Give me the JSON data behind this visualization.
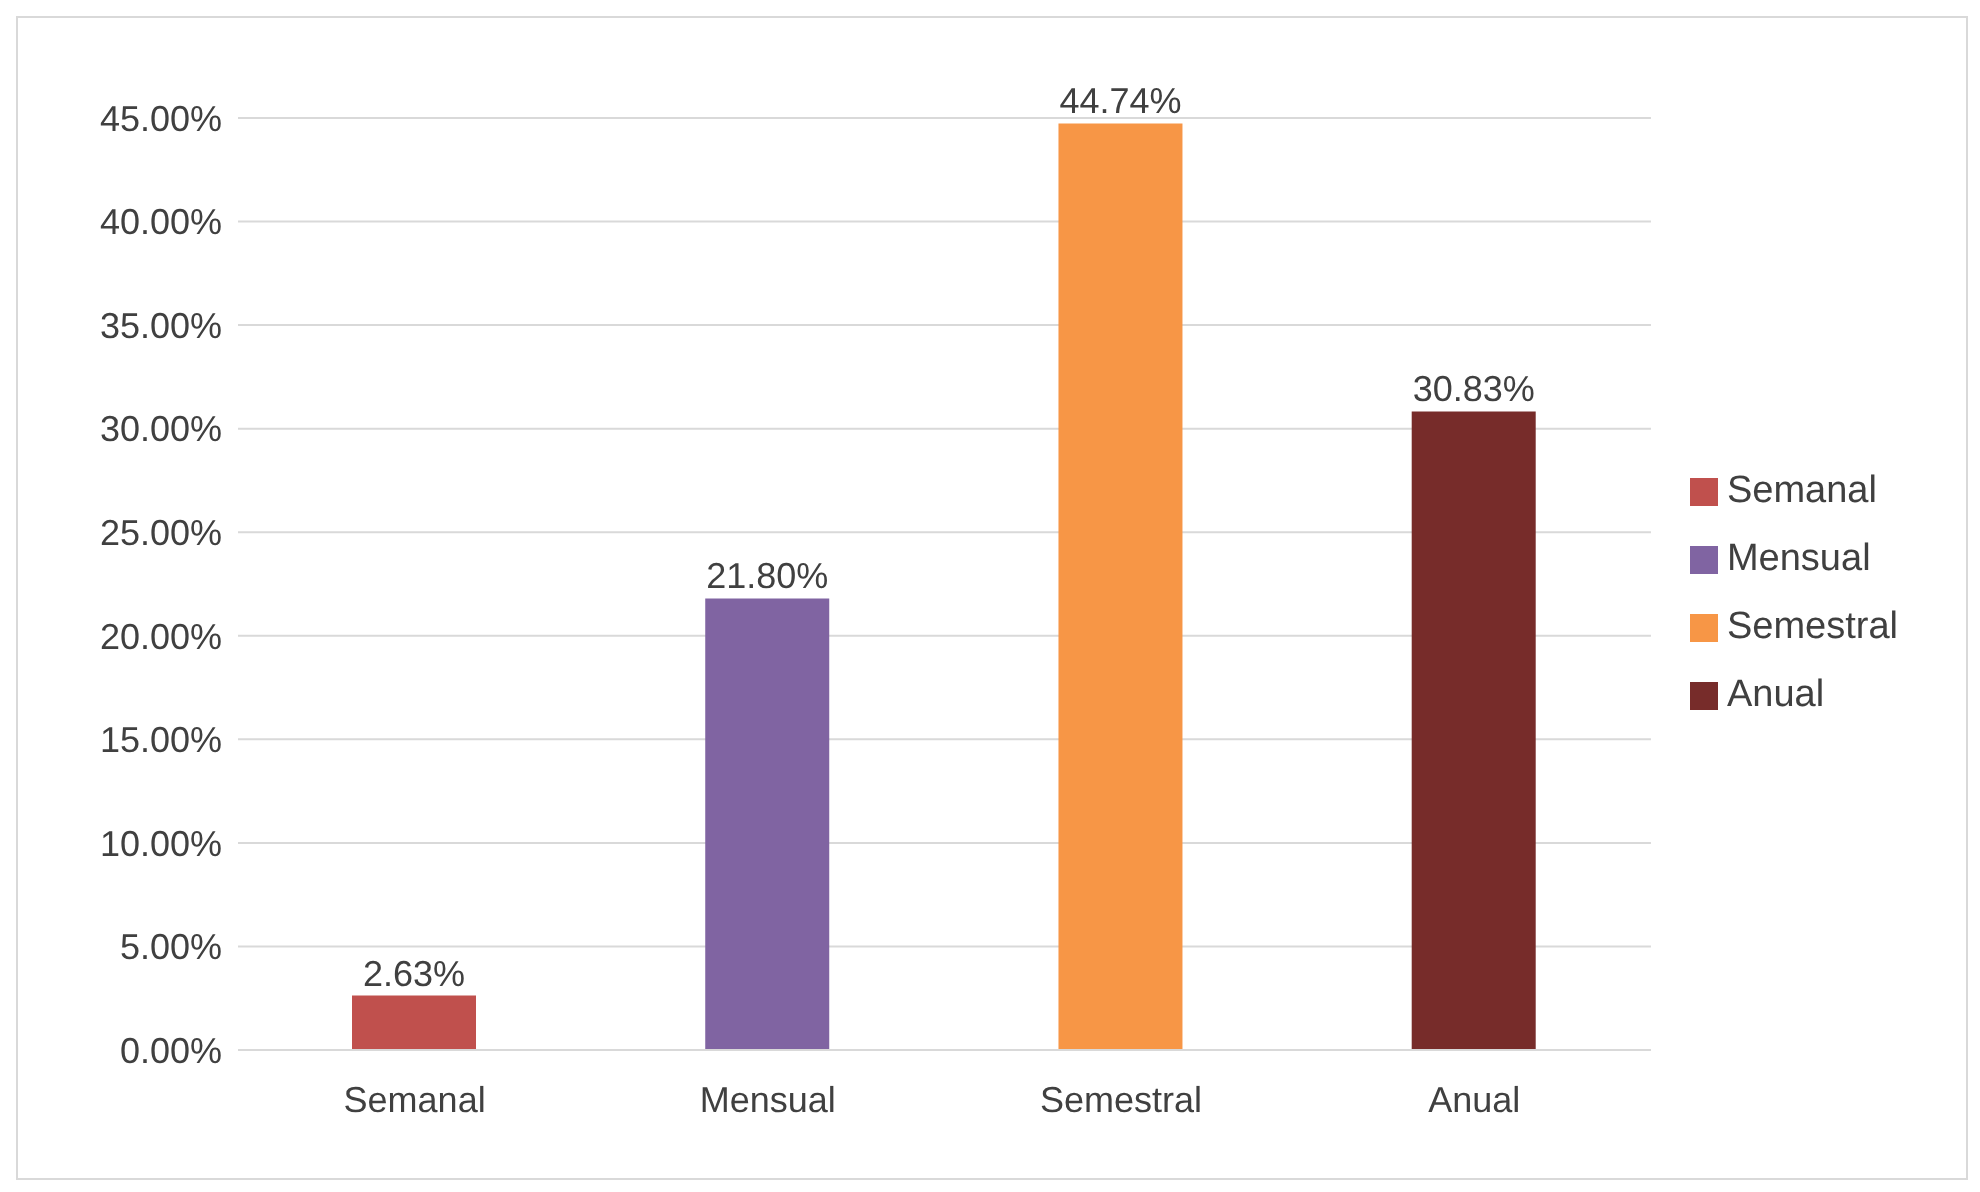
{
  "chart_data": {
    "type": "bar",
    "categories": [
      "Semanal",
      "Mensual",
      "Semestral",
      "Anual"
    ],
    "series": [
      {
        "name": "Semanal",
        "color": "#c0504d",
        "values": [
          2.63,
          null,
          null,
          null
        ],
        "value_labels": [
          "2.63%",
          null,
          null,
          null
        ]
      },
      {
        "name": "Mensual",
        "color": "#8064a2",
        "values": [
          null,
          21.8,
          null,
          null
        ],
        "value_labels": [
          null,
          "21.80%",
          null,
          null
        ]
      },
      {
        "name": "Semestral",
        "color": "#f79646",
        "values": [
          null,
          null,
          44.74,
          null
        ],
        "value_labels": [
          null,
          null,
          "44.74%",
          null
        ]
      },
      {
        "name": "Anual",
        "color": "#772c2a",
        "values": [
          null,
          null,
          null,
          30.83
        ],
        "value_labels": [
          null,
          null,
          null,
          "30.83%"
        ]
      }
    ],
    "ylim": [
      0,
      45
    ],
    "yticks": [
      {
        "value": 0,
        "label": "0.00%"
      },
      {
        "value": 5,
        "label": "5.00%"
      },
      {
        "value": 10,
        "label": "10.00%"
      },
      {
        "value": 15,
        "label": "15.00%"
      },
      {
        "value": 20,
        "label": "20.00%"
      },
      {
        "value": 25,
        "label": "25.00%"
      },
      {
        "value": 30,
        "label": "30.00%"
      },
      {
        "value": 35,
        "label": "35.00%"
      },
      {
        "value": 40,
        "label": "40.00%"
      },
      {
        "value": 45,
        "label": "45.00%"
      }
    ],
    "grid": "y",
    "legend": "right"
  }
}
